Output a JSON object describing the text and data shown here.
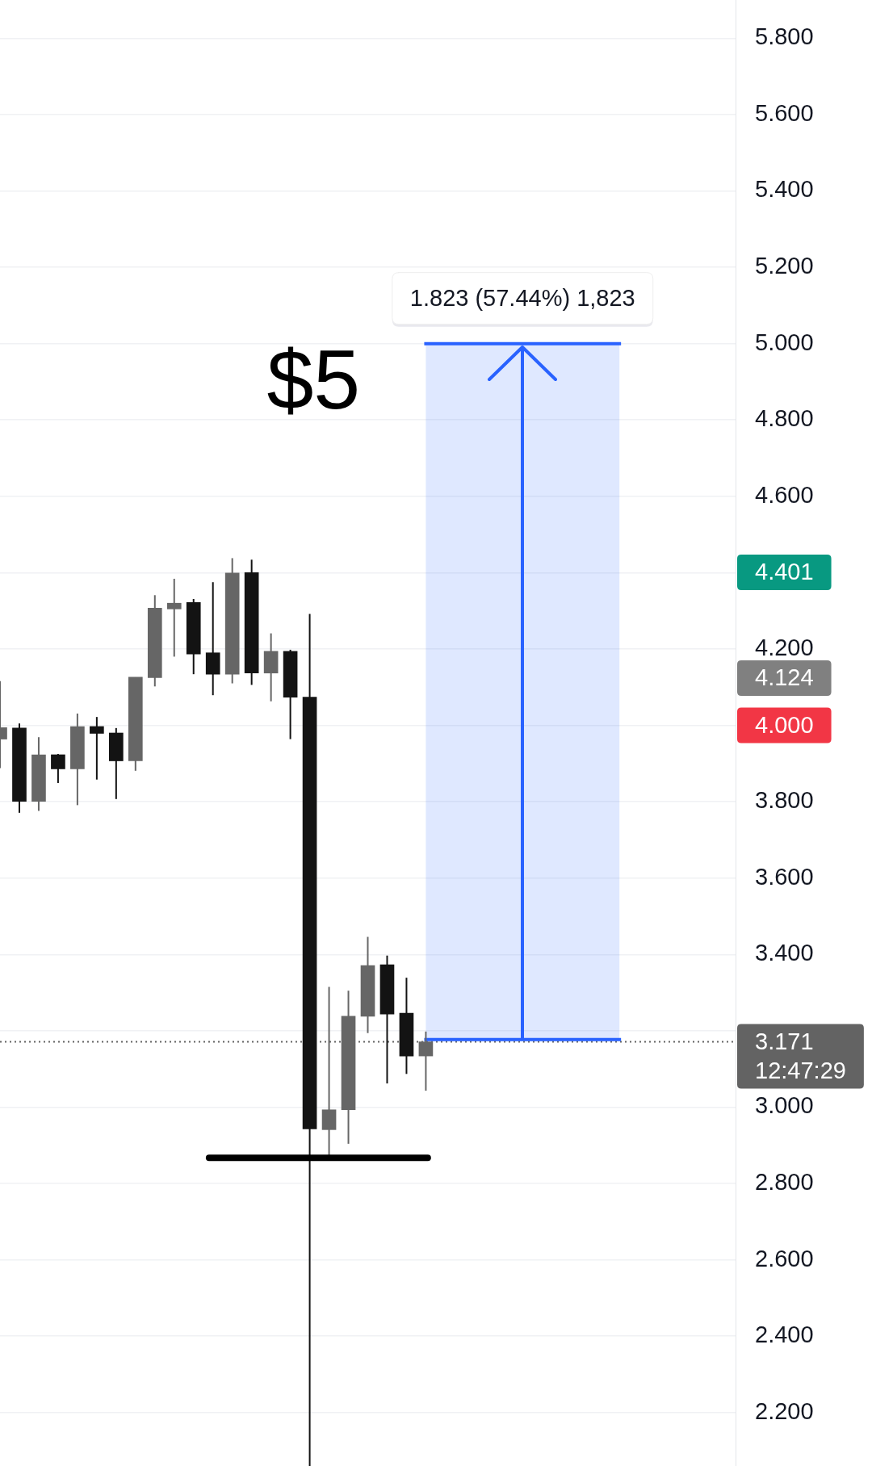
{
  "chart_data": {
    "type": "candlestick",
    "categories": [
      null,
      null,
      null,
      null,
      null,
      null,
      null,
      null,
      null,
      null,
      null,
      null,
      null,
      null,
      null,
      null,
      null,
      null,
      null,
      null,
      null,
      null,
      null,
      null,
      null,
      null,
      null,
      null,
      null,
      null,
      null,
      null,
      null,
      null,
      null,
      null,
      null,
      null,
      null
    ],
    "ohlc": [
      [
        3.964,
        4.116,
        3.888,
        3.994
      ],
      [
        3.993,
        4.005,
        3.771,
        3.801
      ],
      [
        3.801,
        3.969,
        3.776,
        3.923
      ],
      [
        3.923,
        3.925,
        3.849,
        3.886
      ],
      [
        3.886,
        4.031,
        3.791,
        3.997
      ],
      [
        3.997,
        4.022,
        3.858,
        3.979
      ],
      [
        3.98,
        3.993,
        3.807,
        3.907
      ],
      [
        3.907,
        4.126,
        3.881,
        4.126
      ],
      [
        4.125,
        4.341,
        4.102,
        4.307
      ],
      [
        4.305,
        4.384,
        4.18,
        4.32
      ],
      [
        4.322,
        4.331,
        4.134,
        4.187
      ],
      [
        4.19,
        4.375,
        4.079,
        4.134
      ],
      [
        4.134,
        4.438,
        4.11,
        4.399
      ],
      [
        4.4,
        4.434,
        4.106,
        4.137
      ],
      [
        4.137,
        4.241,
        4.063,
        4.194
      ],
      [
        4.194,
        4.198,
        3.964,
        4.074
      ],
      [
        4.074,
        4.292,
        2.06,
        2.943
      ],
      [
        2.941,
        3.315,
        2.874,
        2.993
      ],
      [
        2.993,
        3.305,
        2.904,
        3.238
      ],
      [
        3.238,
        3.446,
        3.194,
        3.371
      ],
      [
        3.373,
        3.397,
        3.062,
        3.244
      ],
      [
        3.246,
        3.339,
        3.087,
        3.134
      ],
      [
        3.134,
        3.198,
        3.043,
        3.171
      ],
      null,
      null,
      null,
      null,
      null,
      null,
      null,
      null,
      null,
      null,
      null,
      null,
      null,
      null,
      null,
      null
    ],
    "colors": [
      "#666666",
      "#131313",
      "#666666",
      "#131313",
      "#666666",
      "#131313",
      "#131313",
      "#666666",
      "#666666",
      "#666666",
      "#131313",
      "#131313",
      "#666666",
      "#131313",
      "#666666",
      "#131313",
      "#131313",
      "#666666",
      "#666666",
      "#666666",
      "#131313",
      "#131313",
      "#666666",
      null,
      null,
      null,
      null,
      null,
      null,
      null,
      null,
      null,
      null,
      null,
      null,
      null,
      null,
      null,
      null
    ],
    "ylim": [
      2.06,
      5.9
    ],
    "yticks": [
      {
        "value": 5.8,
        "label": "5.800"
      },
      {
        "value": 5.6,
        "label": "5.600"
      },
      {
        "value": 5.4,
        "label": "5.400"
      },
      {
        "value": 5.2,
        "label": "5.200"
      },
      {
        "value": 5.0,
        "label": "5.000"
      },
      {
        "value": 4.8,
        "label": "4.800"
      },
      {
        "value": 4.6,
        "label": "4.600"
      },
      {
        "value": 4.4,
        "label": null
      },
      {
        "value": 4.2,
        "label": "4.200"
      },
      {
        "value": 4.0,
        "label": null
      },
      {
        "value": 3.8,
        "label": "3.800"
      },
      {
        "value": 3.6,
        "label": "3.600"
      },
      {
        "value": 3.4,
        "label": "3.400"
      },
      {
        "value": 3.2,
        "label": null
      },
      {
        "value": 3.0,
        "label": "3.000"
      },
      {
        "value": 2.8,
        "label": "2.800"
      },
      {
        "value": 2.6,
        "label": "2.600"
      },
      {
        "value": 2.4,
        "label": "2.400"
      },
      {
        "value": 2.2,
        "label": "2.200"
      }
    ],
    "grid": "y",
    "tick_labels": "y",
    "ref_lines": [
      {
        "axis": "y",
        "value": 3.171,
        "label": "3.171\n12:47:29",
        "color": "#636363",
        "line_style": "dotted"
      },
      {
        "axis": "y",
        "value": 2.867,
        "color": "#000000",
        "line_style": "solid"
      },
      {
        "axis": "y",
        "value": 5.0,
        "color": "#2962ff",
        "line_style": "solid"
      },
      {
        "axis": "y",
        "value": 3.177,
        "color": "#2962ff",
        "line_style": "solid"
      }
    ],
    "bands": [
      {
        "axis": "y",
        "from": 3.177,
        "to": 5.0,
        "label": "1.823 (57.44%) 1,823",
        "color": "#2962ff"
      }
    ],
    "annotations": [
      "$5",
      "4.401",
      "4.124",
      "4.000"
    ]
  }
}
